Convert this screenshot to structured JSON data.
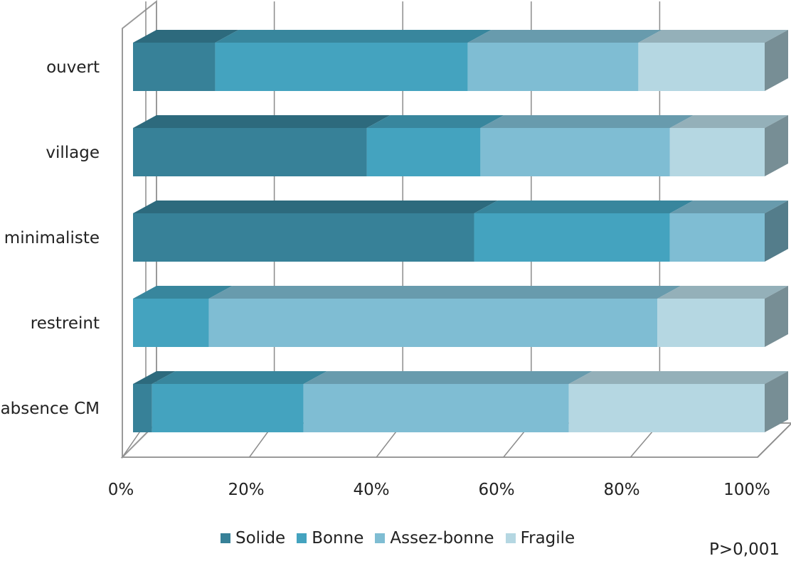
{
  "chart_data": {
    "type": "bar",
    "orientation": "horizontal",
    "stacked": "percent",
    "three_d": true,
    "categories": [
      "ouvert",
      "village",
      "minimaliste",
      "restreint",
      "absence CM"
    ],
    "series": [
      {
        "name": "Solide",
        "color": "#378198",
        "values": [
          13,
          37,
          54,
          0,
          3
        ]
      },
      {
        "name": "Bonne",
        "color": "#44a3bf",
        "values": [
          40,
          18,
          31,
          12,
          24
        ]
      },
      {
        "name": "Assez-bonne",
        "color": "#7fbdd3",
        "values": [
          27,
          30,
          15,
          71,
          42
        ]
      },
      {
        "name": "Fragile",
        "color": "#b5d7e2",
        "values": [
          20,
          15,
          0,
          17,
          31
        ]
      }
    ],
    "x_ticks": [
      "0%",
      "20%",
      "40%",
      "60%",
      "80%",
      "100%"
    ],
    "xlim": [
      0,
      100
    ],
    "grid": "vertical",
    "legend_position": "bottom",
    "annotation": "P>0,001"
  }
}
